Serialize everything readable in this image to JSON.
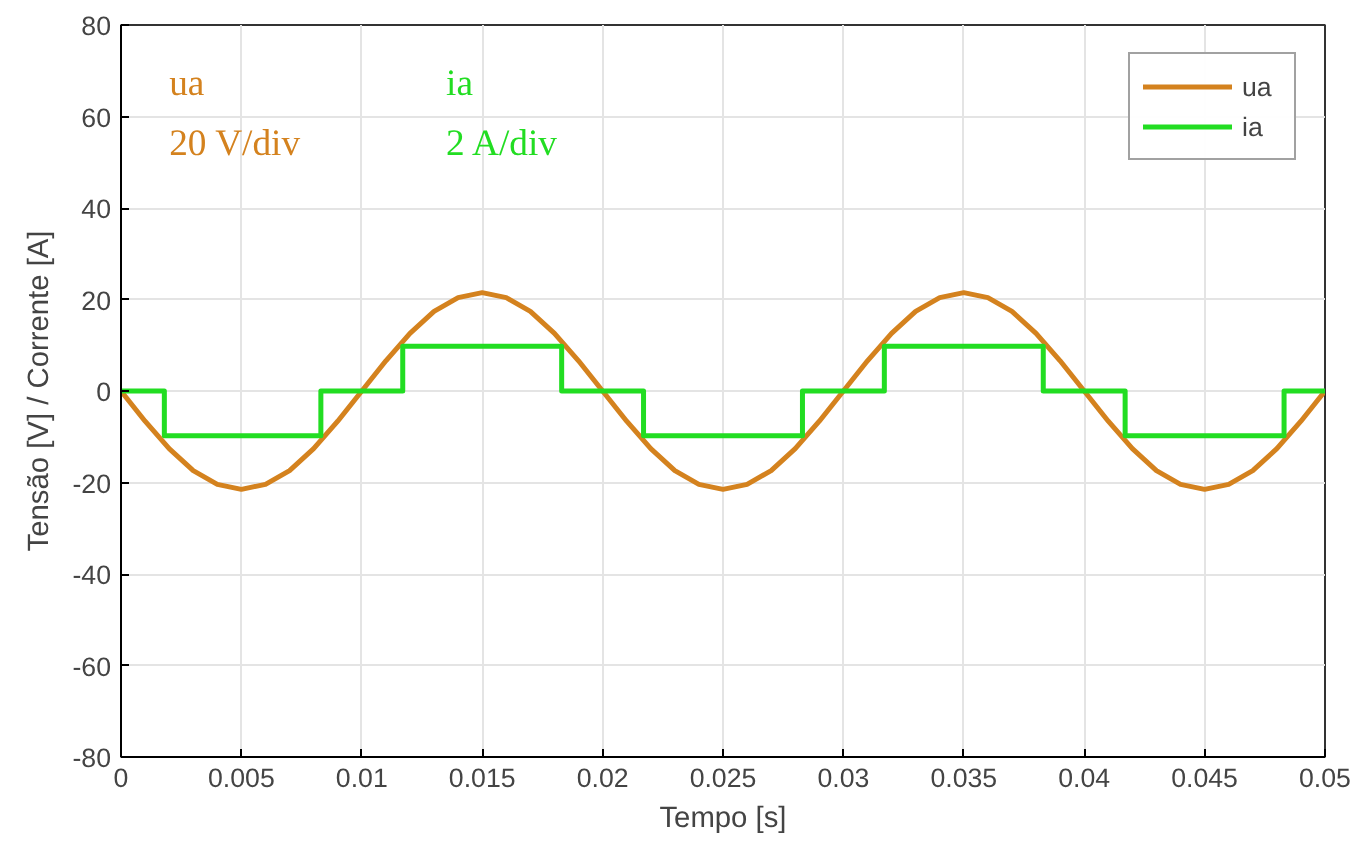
{
  "chart_data": {
    "type": "line",
    "xlabel": "Tempo [s]",
    "ylabel": "Tensão [V] / Corrente [A]",
    "xlim": [
      0,
      0.05
    ],
    "ylim": [
      -80,
      80
    ],
    "xticks": [
      0,
      0.005,
      0.01,
      0.015,
      0.02,
      0.025,
      0.03,
      0.035,
      0.04,
      0.045,
      0.05
    ],
    "yticks": [
      -80,
      -60,
      -40,
      -20,
      0,
      20,
      40,
      60,
      80
    ],
    "grid": true,
    "legend": "top right",
    "annotations": [
      "ua",
      "20 V/div",
      "ia",
      "2 A/div"
    ],
    "series": [
      {
        "name": "ua",
        "color": "#d4821e",
        "x": [
          0,
          0.001,
          0.002,
          0.003,
          0.004,
          0.005,
          0.006,
          0.007,
          0.008,
          0.009,
          0.01,
          0.011,
          0.012,
          0.013,
          0.014,
          0.015,
          0.016,
          0.017,
          0.018,
          0.019,
          0.02,
          0.021,
          0.022,
          0.023,
          0.024,
          0.025,
          0.026,
          0.027,
          0.028,
          0.029,
          0.03,
          0.031,
          0.032,
          0.033,
          0.034,
          0.035,
          0.036,
          0.037,
          0.038,
          0.039,
          0.04,
          0.041,
          0.042,
          0.043,
          0.044,
          0.045,
          0.046,
          0.047,
          0.048,
          0.049,
          0.05
        ],
        "values": [
          0,
          -6.6,
          -12.6,
          -17.4,
          -20.4,
          -21.5,
          -20.4,
          -17.4,
          -12.6,
          -6.6,
          0,
          6.6,
          12.6,
          17.4,
          20.4,
          21.5,
          20.4,
          17.4,
          12.6,
          6.6,
          0,
          -6.6,
          -12.6,
          -17.4,
          -20.4,
          -21.5,
          -20.4,
          -17.4,
          -12.6,
          -6.6,
          0,
          6.6,
          12.6,
          17.4,
          20.4,
          21.5,
          20.4,
          17.4,
          12.6,
          6.6,
          0,
          -6.6,
          -12.6,
          -17.4,
          -20.4,
          -21.5,
          -20.4,
          -17.4,
          -12.6,
          -6.6,
          0
        ]
      },
      {
        "name": "ia",
        "color": "#22dd22",
        "x": [
          0,
          0.0018,
          0.0018,
          0.0083,
          0.0083,
          0.0117,
          0.0117,
          0.0183,
          0.0183,
          0.0217,
          0.0217,
          0.0283,
          0.0283,
          0.0317,
          0.0317,
          0.0383,
          0.0383,
          0.0417,
          0.0417,
          0.0483,
          0.0483,
          0.05
        ],
        "values": [
          0,
          0,
          -9.8,
          -9.8,
          0,
          0,
          9.8,
          9.8,
          0,
          0,
          -9.8,
          -9.8,
          0,
          0,
          9.8,
          9.8,
          0,
          0,
          -9.8,
          -9.8,
          0,
          0
        ]
      }
    ]
  }
}
